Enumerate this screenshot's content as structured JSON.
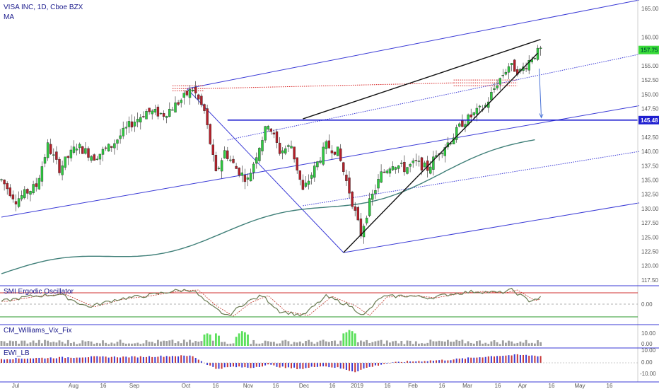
{
  "header": {
    "symbol_line": "VISA INC, 1D, Cboe BZX",
    "indicator": "MA"
  },
  "colors": {
    "up": "#2ecc40",
    "down": "#b5202a",
    "channel": "#3a3ad6",
    "wedge": "#111111",
    "ma": "#3f7f78",
    "resistance": "#1f1fd0",
    "hatch": "#d62020",
    "smi_main": "#6a7b52",
    "smi_signal": "#c0392b",
    "vix": "#9e9e9e",
    "vix_hi": "#5be05b",
    "ewi_up": "#c73737",
    "ewi_down": "#3b3bd6"
  },
  "chart_data": [
    {
      "type": "candlestick",
      "panel": "price",
      "y_ticks": [
        "165.00",
        "160.00",
        "155.00",
        "152.50",
        "150.00",
        "147.50",
        "142.50",
        "140.00",
        "137.50",
        "135.00",
        "132.50",
        "130.00",
        "127.50",
        "125.00",
        "122.50",
        "120.00",
        "117.50"
      ],
      "ylim": [
        116.5,
        166.5
      ],
      "last_price": "157.75",
      "level_label": "145.48",
      "level": 145.48,
      "x_labels": [
        "Jul",
        "Aug",
        "16",
        "Sep",
        "Oct",
        "16",
        "Nov",
        "16",
        "Dec",
        "16",
        "2019",
        "16",
        "Feb",
        "16",
        "Mar",
        "16",
        "Apr",
        "16",
        "May",
        "16"
      ],
      "anchors": [
        {
          "i": 0,
          "p": 135
        },
        {
          "i": 5,
          "p": 131.5
        },
        {
          "i": 12,
          "p": 134
        },
        {
          "i": 16,
          "p": 141
        },
        {
          "i": 20,
          "p": 137
        },
        {
          "i": 26,
          "p": 141
        },
        {
          "i": 32,
          "p": 139
        },
        {
          "i": 38,
          "p": 141
        },
        {
          "i": 44,
          "p": 144.5
        },
        {
          "i": 50,
          "p": 147
        },
        {
          "i": 56,
          "p": 146.5
        },
        {
          "i": 62,
          "p": 149
        },
        {
          "i": 66,
          "p": 151
        },
        {
          "i": 70,
          "p": 147
        },
        {
          "i": 74,
          "p": 136
        },
        {
          "i": 77,
          "p": 140
        },
        {
          "i": 81,
          "p": 137
        },
        {
          "i": 85,
          "p": 135
        },
        {
          "i": 89,
          "p": 141
        },
        {
          "i": 92,
          "p": 145
        },
        {
          "i": 96,
          "p": 140
        },
        {
          "i": 100,
          "p": 141
        },
        {
          "i": 104,
          "p": 133
        },
        {
          "i": 108,
          "p": 137
        },
        {
          "i": 112,
          "p": 141
        },
        {
          "i": 116,
          "p": 140
        },
        {
          "i": 120,
          "p": 133
        },
        {
          "i": 124,
          "p": 125.5
        },
        {
          "i": 127,
          "p": 131
        },
        {
          "i": 131,
          "p": 136
        },
        {
          "i": 135,
          "p": 138
        },
        {
          "i": 139,
          "p": 137
        },
        {
          "i": 143,
          "p": 138
        },
        {
          "i": 147,
          "p": 137
        },
        {
          "i": 151,
          "p": 140
        },
        {
          "i": 155,
          "p": 142
        },
        {
          "i": 159,
          "p": 145
        },
        {
          "i": 163,
          "p": 146.5
        },
        {
          "i": 167,
          "p": 148
        },
        {
          "i": 171,
          "p": 152
        },
        {
          "i": 175,
          "p": 155
        },
        {
          "i": 179,
          "p": 154
        },
        {
          "i": 183,
          "p": 156.5
        },
        {
          "i": 186,
          "p": 157.75
        }
      ]
    },
    {
      "type": "line",
      "panel": "oscillator",
      "label": "SMI Ergodic Oscillator",
      "value_label": "0.00",
      "anchors_main": [
        {
          "i": 0,
          "v": 0.2
        },
        {
          "i": 10,
          "v": 0.55
        },
        {
          "i": 20,
          "v": 0.7
        },
        {
          "i": 30,
          "v": -0.2
        },
        {
          "i": 40,
          "v": 0.35
        },
        {
          "i": 50,
          "v": 0.6
        },
        {
          "i": 60,
          "v": 0.95
        },
        {
          "i": 66,
          "v": 1.0
        },
        {
          "i": 72,
          "v": -0.1
        },
        {
          "i": 78,
          "v": -0.85
        },
        {
          "i": 84,
          "v": 0.1
        },
        {
          "i": 90,
          "v": 0.6
        },
        {
          "i": 96,
          "v": -0.5
        },
        {
          "i": 104,
          "v": -0.8
        },
        {
          "i": 112,
          "v": 0.55
        },
        {
          "i": 120,
          "v": -0.1
        },
        {
          "i": 125,
          "v": -0.8
        },
        {
          "i": 131,
          "v": 0.5
        },
        {
          "i": 140,
          "v": 0.6
        },
        {
          "i": 148,
          "v": 0.45
        },
        {
          "i": 156,
          "v": 0.75
        },
        {
          "i": 164,
          "v": 0.9
        },
        {
          "i": 172,
          "v": 0.8
        },
        {
          "i": 176,
          "v": 1.0
        },
        {
          "i": 182,
          "v": 0.25
        },
        {
          "i": 186,
          "v": 0.45
        }
      ],
      "upper": 0.8,
      "lower": -0.9
    },
    {
      "type": "bar",
      "panel": "vix",
      "label": "CM_Williams_Vix_Fix",
      "y_ticks": [
        "10.00",
        "0.00"
      ],
      "spikes": [
        {
          "i": 70,
          "v": 10
        },
        {
          "i": 71,
          "v": 11
        },
        {
          "i": 72,
          "v": 10
        },
        {
          "i": 74,
          "v": 11
        },
        {
          "i": 75,
          "v": 9
        },
        {
          "i": 81,
          "v": 8
        },
        {
          "i": 82,
          "v": 11
        },
        {
          "i": 83,
          "v": 13
        },
        {
          "i": 84,
          "v": 12
        },
        {
          "i": 85,
          "v": 10
        },
        {
          "i": 118,
          "v": 11
        },
        {
          "i": 119,
          "v": 12
        },
        {
          "i": 120,
          "v": 14
        },
        {
          "i": 121,
          "v": 13
        },
        {
          "i": 122,
          "v": 11
        }
      ]
    },
    {
      "type": "bar",
      "panel": "ewi",
      "label": "EWI_LB",
      "y_ticks": [
        "10.00",
        "0.00",
        "-10.00"
      ],
      "anchors": [
        {
          "i": 0,
          "v": 4
        },
        {
          "i": 15,
          "v": 5
        },
        {
          "i": 30,
          "v": 6
        },
        {
          "i": 45,
          "v": 6
        },
        {
          "i": 60,
          "v": 7
        },
        {
          "i": 66,
          "v": 7
        },
        {
          "i": 70,
          "v": 0
        },
        {
          "i": 74,
          "v": -6
        },
        {
          "i": 80,
          "v": -4
        },
        {
          "i": 86,
          "v": -5
        },
        {
          "i": 92,
          "v": -2
        },
        {
          "i": 98,
          "v": -5
        },
        {
          "i": 104,
          "v": -6
        },
        {
          "i": 110,
          "v": -3
        },
        {
          "i": 116,
          "v": -5
        },
        {
          "i": 122,
          "v": -9
        },
        {
          "i": 126,
          "v": -5
        },
        {
          "i": 132,
          "v": -1
        },
        {
          "i": 138,
          "v": 1
        },
        {
          "i": 146,
          "v": 2
        },
        {
          "i": 154,
          "v": 3
        },
        {
          "i": 162,
          "v": 5
        },
        {
          "i": 170,
          "v": 7
        },
        {
          "i": 178,
          "v": 8
        },
        {
          "i": 186,
          "v": 7
        }
      ]
    }
  ]
}
